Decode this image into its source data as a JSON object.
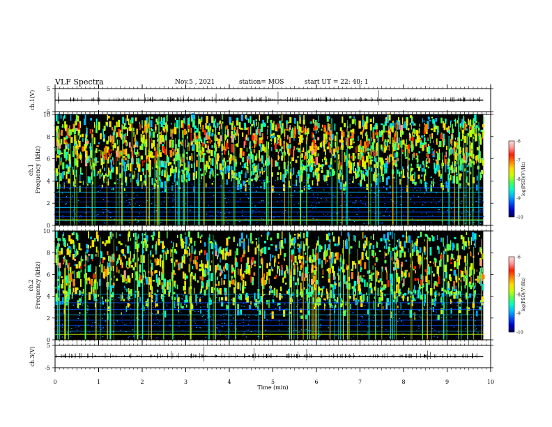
{
  "header": {
    "title": "VLF Spectra",
    "date": "Nov.5 , 2021",
    "station": "station= MOS",
    "start": "start UT = 22: 40: 1"
  },
  "colors": {
    "colormap": [
      "#00005a",
      "#0000c8",
      "#0050ff",
      "#00b4ff",
      "#00ffc8",
      "#50ff50",
      "#c8ff00",
      "#ffdc00",
      "#ff8000",
      "#ff1e00",
      "#ff9696",
      "#ffdcdc"
    ],
    "background": "#000000",
    "trace": "#000000"
  },
  "chart_data": [
    {
      "type": "line",
      "name": "ch.1 waveform",
      "ylabel": "ch.1(V)",
      "ylim": [
        -5,
        5
      ],
      "yticks": [
        5,
        -5
      ],
      "x": [
        0,
        10
      ],
      "values": [
        0,
        0
      ]
    },
    {
      "type": "heatmap",
      "name": "ch.1 spectrogram",
      "ylabel": "ch.1 Frequency (kHz)",
      "ylabel_lines": [
        "ch.1",
        "Frequency (kHz)"
      ],
      "ylim": [
        0,
        10
      ],
      "yticks": [
        0,
        2,
        4,
        6,
        8,
        10
      ],
      "xlim": [
        0,
        10
      ],
      "data_end_min": 9.83,
      "colorbar": {
        "label": "log(PSD)(V²/Hz)",
        "range": [
          -10,
          -6
        ],
        "ticks": [
          -6,
          -7,
          -8,
          -9,
          -10
        ]
      },
      "dominant_band_khz": [
        4,
        10
      ],
      "strong_band_khz": [
        5.5,
        9
      ]
    },
    {
      "type": "heatmap",
      "name": "ch.2 spectrogram",
      "ylabel": "ch.2 Frequency (kHz)",
      "ylabel_lines": [
        "ch.2",
        "Frequency (kHz)"
      ],
      "ylim": [
        0,
        10
      ],
      "yticks": [
        0,
        2,
        4,
        6,
        8,
        10
      ],
      "xlim": [
        0,
        10
      ],
      "data_end_min": 9.83,
      "colorbar": {
        "label": "log(PSD)(V²/Hz)",
        "range": [
          -10,
          -6
        ],
        "ticks": [
          -6,
          -7,
          -8,
          -9,
          -10
        ]
      },
      "dominant_band_khz": [
        3,
        10
      ],
      "strong_band_khz": [
        5,
        8
      ]
    },
    {
      "type": "line",
      "name": "ch.3 waveform",
      "ylabel": "ch.3(V)",
      "ylim": [
        -5,
        5
      ],
      "yticks": [
        5,
        -5
      ],
      "x": [
        0,
        10
      ],
      "values": [
        0,
        0
      ]
    }
  ],
  "xaxis": {
    "label": "Time (min)",
    "range": [
      0,
      10
    ],
    "ticks": [
      0,
      1,
      2,
      3,
      4,
      5,
      6,
      7,
      8,
      9,
      10
    ]
  }
}
